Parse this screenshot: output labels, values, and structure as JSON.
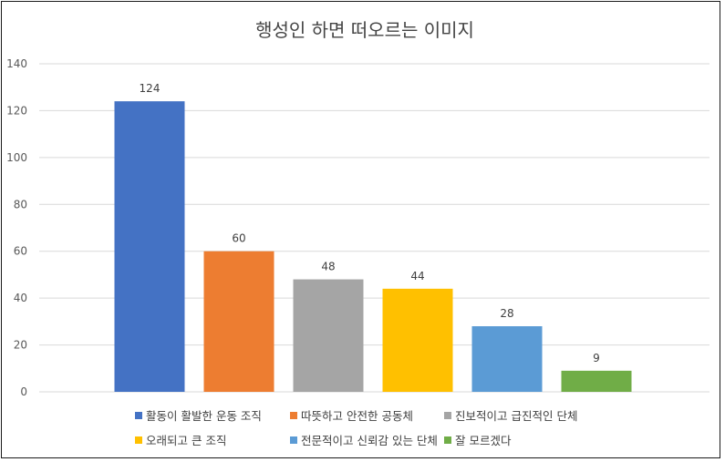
{
  "chart_data": {
    "type": "bar",
    "title": "행성인 하면 떠오르는 이미지",
    "categories": [
      "활동이 활발한 운동 조직",
      "따뜻하고 안전한 공동체",
      "진보적이고 급진적인 단체",
      "오래되고 큰 조직",
      "전문적이고 신뢰감 있는 단체",
      "잘 모르겠다"
    ],
    "values": [
      124,
      60,
      48,
      44,
      28,
      9
    ],
    "colors": [
      "#4472c4",
      "#ed7d31",
      "#a5a5a5",
      "#ffc000",
      "#5b9bd5",
      "#70ad47"
    ],
    "ylim": [
      0,
      140
    ],
    "yticks": [
      0,
      20,
      40,
      60,
      80,
      100,
      120,
      140
    ],
    "grid": true,
    "legend": "bottom"
  }
}
